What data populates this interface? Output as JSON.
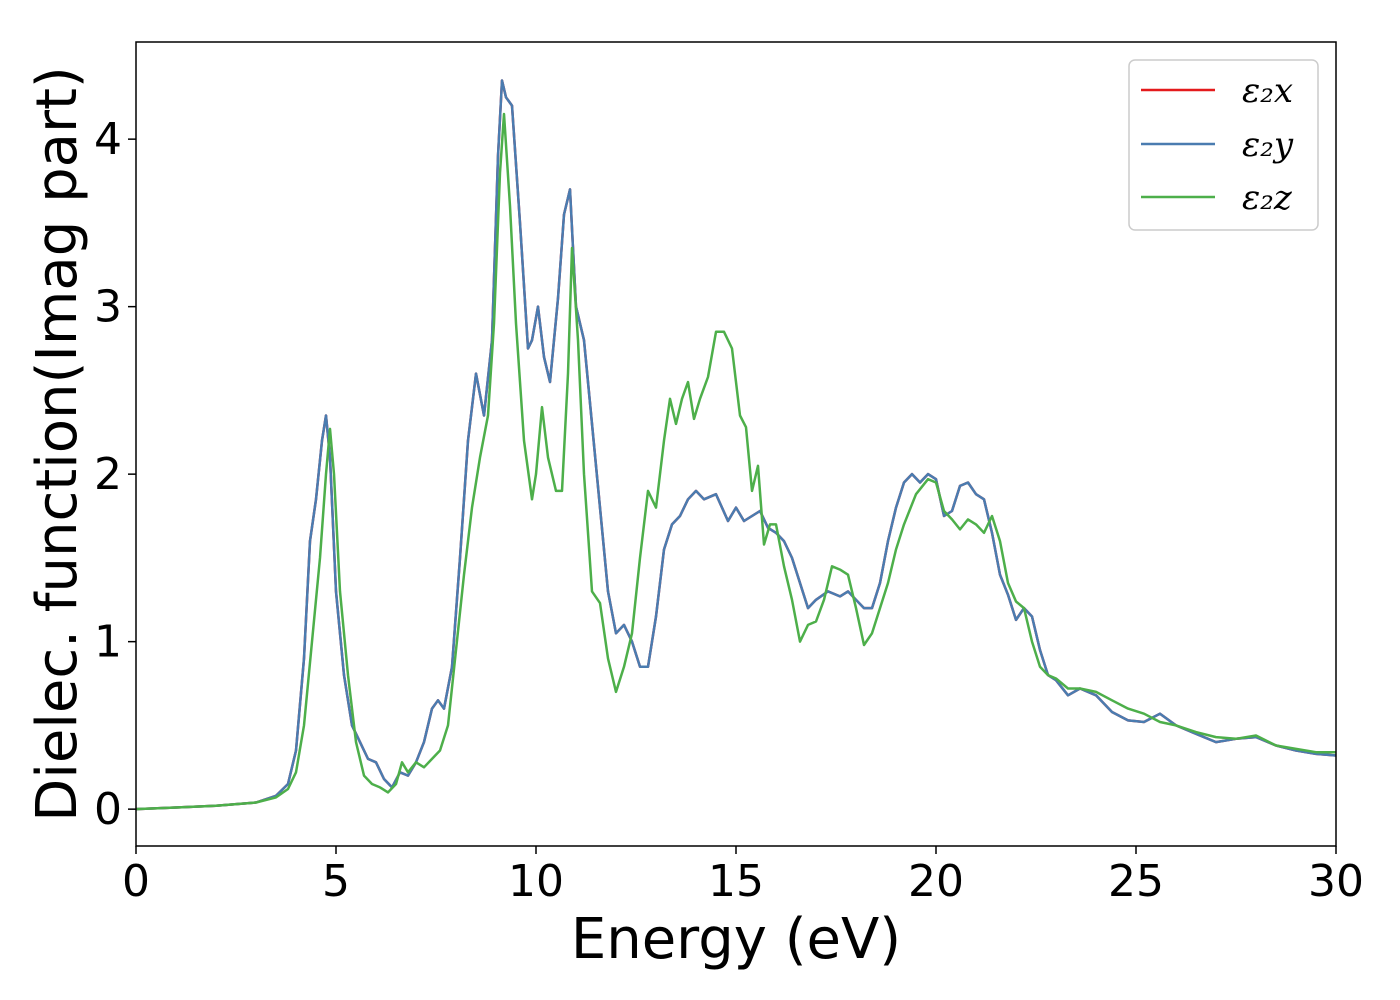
{
  "chart_data": {
    "type": "line",
    "xlabel": "Energy (eV)",
    "ylabel": "Dielec. function(Imag part)",
    "xlim": [
      0,
      30
    ],
    "ylim": [
      -0.22,
      4.58
    ],
    "xticks": [
      0,
      5,
      10,
      15,
      20,
      25,
      30
    ],
    "yticks": [
      0,
      1,
      2,
      3,
      4
    ],
    "grid": false,
    "legend_position": "top-right",
    "series": [
      {
        "name": "ε₂x",
        "color": "#e41a1c",
        "x": [
          0,
          1,
          2,
          3,
          3.5,
          3.8,
          4.0,
          4.2,
          4.35,
          4.5,
          4.65,
          4.75,
          4.85,
          5.0,
          5.2,
          5.4,
          5.6,
          5.8,
          6.0,
          6.2,
          6.4,
          6.6,
          6.8,
          7.0,
          7.2,
          7.4,
          7.55,
          7.7,
          7.9,
          8.1,
          8.3,
          8.5,
          8.7,
          8.9,
          9.05,
          9.15,
          9.25,
          9.4,
          9.6,
          9.8,
          9.9,
          10.05,
          10.2,
          10.35,
          10.55,
          10.7,
          10.85,
          11.0,
          11.2,
          11.4,
          11.6,
          11.8,
          12.0,
          12.2,
          12.4,
          12.6,
          12.8,
          13.0,
          13.2,
          13.4,
          13.6,
          13.8,
          14.0,
          14.2,
          14.5,
          14.8,
          15.0,
          15.2,
          15.4,
          15.6,
          15.8,
          16.0,
          16.2,
          16.4,
          16.6,
          16.8,
          17.0,
          17.3,
          17.6,
          17.8,
          18.0,
          18.2,
          18.4,
          18.6,
          18.8,
          19.0,
          19.2,
          19.4,
          19.6,
          19.8,
          20.0,
          20.2,
          20.4,
          20.6,
          20.8,
          21.0,
          21.2,
          21.4,
          21.6,
          21.8,
          22.0,
          22.2,
          22.4,
          22.6,
          22.8,
          23.0,
          23.3,
          23.6,
          24.0,
          24.4,
          24.8,
          25.2,
          25.6,
          26.0,
          26.5,
          27.0,
          27.5,
          28.0,
          28.5,
          29.0,
          29.5,
          30.0
        ],
        "y": [
          0.0,
          0.01,
          0.02,
          0.04,
          0.08,
          0.15,
          0.35,
          0.9,
          1.6,
          1.85,
          2.2,
          2.35,
          2.1,
          1.3,
          0.8,
          0.5,
          0.4,
          0.3,
          0.28,
          0.18,
          0.13,
          0.22,
          0.2,
          0.28,
          0.4,
          0.6,
          0.65,
          0.6,
          0.85,
          1.5,
          2.2,
          2.6,
          2.35,
          2.8,
          3.9,
          4.35,
          4.25,
          4.2,
          3.5,
          2.75,
          2.8,
          3.0,
          2.7,
          2.55,
          3.05,
          3.55,
          3.7,
          3.0,
          2.8,
          2.3,
          1.8,
          1.3,
          1.05,
          1.1,
          1.0,
          0.85,
          0.85,
          1.15,
          1.55,
          1.7,
          1.75,
          1.85,
          1.9,
          1.85,
          1.88,
          1.72,
          1.8,
          1.72,
          1.75,
          1.78,
          1.68,
          1.65,
          1.6,
          1.5,
          1.35,
          1.2,
          1.25,
          1.3,
          1.27,
          1.3,
          1.25,
          1.2,
          1.2,
          1.35,
          1.6,
          1.8,
          1.95,
          2.0,
          1.95,
          2.0,
          1.97,
          1.75,
          1.78,
          1.93,
          1.95,
          1.88,
          1.85,
          1.65,
          1.4,
          1.28,
          1.13,
          1.2,
          1.15,
          0.95,
          0.8,
          0.77,
          0.68,
          0.72,
          0.68,
          0.58,
          0.53,
          0.52,
          0.57,
          0.5,
          0.45,
          0.4,
          0.42,
          0.43,
          0.38,
          0.35,
          0.33,
          0.32
        ]
      },
      {
        "name": "ε₂y",
        "color": "#4a7cb0",
        "x": [
          0,
          1,
          2,
          3,
          3.5,
          3.8,
          4.0,
          4.2,
          4.35,
          4.5,
          4.65,
          4.75,
          4.85,
          5.0,
          5.2,
          5.4,
          5.6,
          5.8,
          6.0,
          6.2,
          6.4,
          6.6,
          6.8,
          7.0,
          7.2,
          7.4,
          7.55,
          7.7,
          7.9,
          8.1,
          8.3,
          8.5,
          8.7,
          8.9,
          9.05,
          9.15,
          9.25,
          9.4,
          9.6,
          9.8,
          9.9,
          10.05,
          10.2,
          10.35,
          10.55,
          10.7,
          10.85,
          11.0,
          11.2,
          11.4,
          11.6,
          11.8,
          12.0,
          12.2,
          12.4,
          12.6,
          12.8,
          13.0,
          13.2,
          13.4,
          13.6,
          13.8,
          14.0,
          14.2,
          14.5,
          14.8,
          15.0,
          15.2,
          15.4,
          15.6,
          15.8,
          16.0,
          16.2,
          16.4,
          16.6,
          16.8,
          17.0,
          17.3,
          17.6,
          17.8,
          18.0,
          18.2,
          18.4,
          18.6,
          18.8,
          19.0,
          19.2,
          19.4,
          19.6,
          19.8,
          20.0,
          20.2,
          20.4,
          20.6,
          20.8,
          21.0,
          21.2,
          21.4,
          21.6,
          21.8,
          22.0,
          22.2,
          22.4,
          22.6,
          22.8,
          23.0,
          23.3,
          23.6,
          24.0,
          24.4,
          24.8,
          25.2,
          25.6,
          26.0,
          26.5,
          27.0,
          27.5,
          28.0,
          28.5,
          29.0,
          29.5,
          30.0
        ],
        "y": [
          0.0,
          0.01,
          0.02,
          0.04,
          0.08,
          0.15,
          0.35,
          0.9,
          1.6,
          1.85,
          2.2,
          2.35,
          2.1,
          1.3,
          0.8,
          0.5,
          0.4,
          0.3,
          0.28,
          0.18,
          0.13,
          0.22,
          0.2,
          0.28,
          0.4,
          0.6,
          0.65,
          0.6,
          0.85,
          1.5,
          2.2,
          2.6,
          2.35,
          2.8,
          3.9,
          4.35,
          4.25,
          4.2,
          3.5,
          2.75,
          2.8,
          3.0,
          2.7,
          2.55,
          3.05,
          3.55,
          3.7,
          3.0,
          2.8,
          2.3,
          1.8,
          1.3,
          1.05,
          1.1,
          1.0,
          0.85,
          0.85,
          1.15,
          1.55,
          1.7,
          1.75,
          1.85,
          1.9,
          1.85,
          1.88,
          1.72,
          1.8,
          1.72,
          1.75,
          1.78,
          1.68,
          1.65,
          1.6,
          1.5,
          1.35,
          1.2,
          1.25,
          1.3,
          1.27,
          1.3,
          1.25,
          1.2,
          1.2,
          1.35,
          1.6,
          1.8,
          1.95,
          2.0,
          1.95,
          2.0,
          1.97,
          1.75,
          1.78,
          1.93,
          1.95,
          1.88,
          1.85,
          1.65,
          1.4,
          1.28,
          1.13,
          1.2,
          1.15,
          0.95,
          0.8,
          0.77,
          0.68,
          0.72,
          0.68,
          0.58,
          0.53,
          0.52,
          0.57,
          0.5,
          0.45,
          0.4,
          0.42,
          0.43,
          0.38,
          0.35,
          0.33,
          0.32
        ]
      },
      {
        "name": "ε₂z",
        "color": "#4daf4a",
        "x": [
          0,
          1,
          2,
          3,
          3.5,
          3.8,
          4.0,
          4.2,
          4.4,
          4.6,
          4.75,
          4.85,
          4.95,
          5.1,
          5.3,
          5.5,
          5.7,
          5.9,
          6.1,
          6.3,
          6.5,
          6.65,
          6.8,
          7.0,
          7.2,
          7.4,
          7.6,
          7.8,
          8.0,
          8.2,
          8.4,
          8.6,
          8.8,
          8.95,
          9.1,
          9.2,
          9.35,
          9.5,
          9.7,
          9.9,
          10.0,
          10.15,
          10.3,
          10.5,
          10.65,
          10.8,
          10.9,
          11.05,
          11.2,
          11.4,
          11.6,
          11.8,
          12.0,
          12.2,
          12.4,
          12.6,
          12.8,
          13.0,
          13.2,
          13.35,
          13.5,
          13.65,
          13.8,
          13.95,
          14.1,
          14.3,
          14.5,
          14.7,
          14.9,
          15.1,
          15.25,
          15.4,
          15.55,
          15.7,
          15.85,
          16.0,
          16.2,
          16.4,
          16.6,
          16.8,
          17.0,
          17.2,
          17.4,
          17.6,
          17.8,
          18.0,
          18.2,
          18.4,
          18.6,
          18.8,
          19.0,
          19.2,
          19.5,
          19.8,
          20.0,
          20.2,
          20.4,
          20.6,
          20.8,
          21.0,
          21.2,
          21.4,
          21.6,
          21.8,
          22.0,
          22.2,
          22.4,
          22.6,
          22.8,
          23.0,
          23.3,
          23.6,
          24.0,
          24.4,
          24.8,
          25.2,
          25.6,
          26.0,
          26.5,
          27.0,
          27.5,
          28.0,
          28.5,
          29.0,
          29.5,
          30.0
        ],
        "y": [
          0.0,
          0.01,
          0.02,
          0.04,
          0.07,
          0.12,
          0.22,
          0.5,
          1.0,
          1.5,
          2.0,
          2.27,
          2.0,
          1.3,
          0.8,
          0.4,
          0.2,
          0.15,
          0.13,
          0.1,
          0.15,
          0.28,
          0.22,
          0.28,
          0.25,
          0.3,
          0.35,
          0.5,
          0.95,
          1.4,
          1.8,
          2.1,
          2.35,
          2.9,
          3.8,
          4.15,
          3.6,
          2.9,
          2.2,
          1.85,
          2.0,
          2.4,
          2.1,
          1.9,
          1.9,
          2.6,
          3.35,
          2.8,
          2.0,
          1.3,
          1.23,
          0.9,
          0.7,
          0.85,
          1.05,
          1.5,
          1.9,
          1.8,
          2.2,
          2.45,
          2.3,
          2.45,
          2.55,
          2.33,
          2.45,
          2.58,
          2.85,
          2.85,
          2.75,
          2.35,
          2.28,
          1.9,
          2.05,
          1.58,
          1.7,
          1.7,
          1.45,
          1.25,
          1.0,
          1.1,
          1.12,
          1.25,
          1.45,
          1.43,
          1.4,
          1.2,
          0.98,
          1.05,
          1.2,
          1.35,
          1.55,
          1.7,
          1.88,
          1.97,
          1.95,
          1.78,
          1.73,
          1.67,
          1.73,
          1.7,
          1.65,
          1.75,
          1.6,
          1.35,
          1.24,
          1.2,
          1.0,
          0.85,
          0.8,
          0.78,
          0.72,
          0.72,
          0.7,
          0.65,
          0.6,
          0.57,
          0.52,
          0.5,
          0.46,
          0.43,
          0.42,
          0.44,
          0.38,
          0.36,
          0.34,
          0.34
        ]
      }
    ]
  }
}
